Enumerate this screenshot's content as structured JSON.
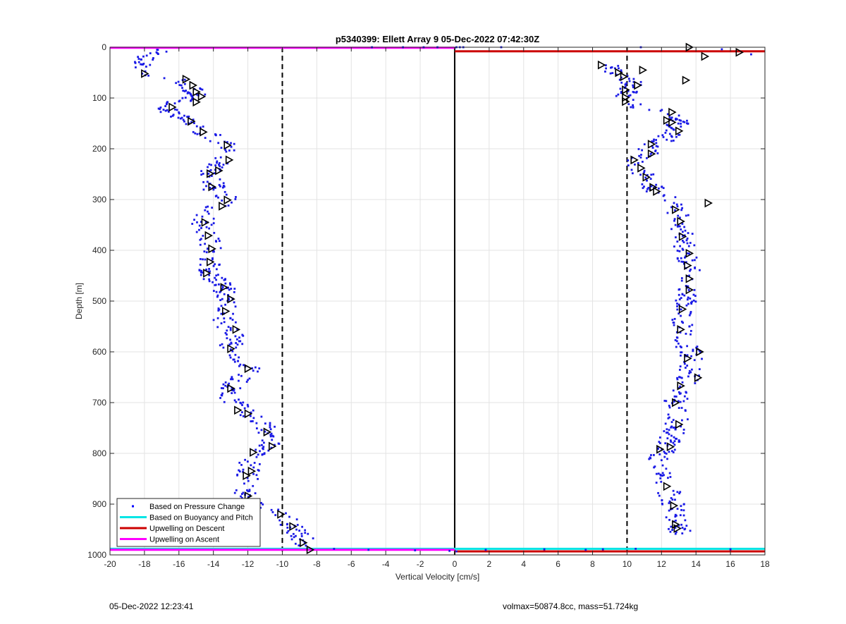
{
  "chart_data": {
    "type": "scatter",
    "title": "p5340399: Ellett Array 9 05-Dec-2022 07:42:30Z",
    "xlabel": "Vertical Velocity [cm/s]",
    "ylabel": "Depth [m]",
    "xlim": [
      -20,
      18
    ],
    "ylim": [
      1000,
      0
    ],
    "y_reversed": true,
    "grid": true,
    "legend_position": "bottom-left",
    "x_ticks": [
      -20,
      -18,
      -16,
      -14,
      -12,
      -10,
      -8,
      -6,
      -4,
      -2,
      0,
      2,
      4,
      6,
      8,
      10,
      12,
      14,
      16,
      18
    ],
    "y_ticks": [
      0,
      100,
      200,
      300,
      400,
      500,
      600,
      700,
      800,
      900,
      1000
    ],
    "reference_lines": [
      {
        "x": -10,
        "style": "dashed",
        "color": "#000000"
      },
      {
        "x": 0,
        "style": "solid",
        "color": "#000000"
      },
      {
        "x": 10,
        "style": "dashed",
        "color": "#000000"
      }
    ],
    "descent_profile": [
      [
        -17.2,
        5
      ],
      [
        -18.0,
        25
      ],
      [
        -18.5,
        45
      ],
      [
        -17.8,
        55
      ],
      [
        -16.3,
        62
      ],
      [
        -15.7,
        70
      ],
      [
        -15.3,
        80
      ],
      [
        -15.0,
        90
      ],
      [
        -15.4,
        100
      ],
      [
        -16.2,
        110
      ],
      [
        -16.8,
        120
      ],
      [
        -16.3,
        130
      ],
      [
        -15.6,
        140
      ],
      [
        -15.2,
        150
      ],
      [
        -14.8,
        160
      ],
      [
        -14.4,
        170
      ],
      [
        -13.8,
        180
      ],
      [
        -13.4,
        190
      ],
      [
        -13.3,
        200
      ],
      [
        -13.5,
        210
      ],
      [
        -13.4,
        220
      ],
      [
        -13.8,
        230
      ],
      [
        -14.3,
        245
      ],
      [
        -14.2,
        255
      ],
      [
        -14.0,
        265
      ],
      [
        -14.0,
        280
      ],
      [
        -13.4,
        290
      ],
      [
        -13.3,
        300
      ],
      [
        -13.6,
        310
      ],
      [
        -14.2,
        325
      ],
      [
        -14.6,
        340
      ],
      [
        -14.6,
        355
      ],
      [
        -14.3,
        370
      ],
      [
        -14.2,
        385
      ],
      [
        -14.0,
        400
      ],
      [
        -14.1,
        415
      ],
      [
        -14.2,
        430
      ],
      [
        -14.3,
        445
      ],
      [
        -13.8,
        460
      ],
      [
        -13.4,
        475
      ],
      [
        -13.2,
        490
      ],
      [
        -13.1,
        500
      ],
      [
        -13.3,
        515
      ],
      [
        -13.5,
        530
      ],
      [
        -13.3,
        545
      ],
      [
        -12.9,
        560
      ],
      [
        -12.8,
        575
      ],
      [
        -13.0,
        590
      ],
      [
        -12.6,
        605
      ],
      [
        -12.2,
        620
      ],
      [
        -11.9,
        635
      ],
      [
        -12.3,
        650
      ],
      [
        -12.8,
        665
      ],
      [
        -13.1,
        675
      ],
      [
        -13.0,
        690
      ],
      [
        -12.4,
        710
      ],
      [
        -11.9,
        725
      ],
      [
        -11.2,
        740
      ],
      [
        -10.8,
        755
      ],
      [
        -10.9,
        770
      ],
      [
        -10.7,
        785
      ],
      [
        -11.4,
        800
      ],
      [
        -11.9,
        815
      ],
      [
        -12.0,
        830
      ],
      [
        -12.0,
        845
      ],
      [
        -12.1,
        860
      ],
      [
        -12.2,
        875
      ],
      [
        -12.0,
        890
      ],
      [
        -11.5,
        900
      ],
      [
        -10.9,
        910
      ],
      [
        -10.1,
        920
      ],
      [
        -9.6,
        935
      ],
      [
        -9.2,
        950
      ],
      [
        -8.9,
        965
      ],
      [
        -8.6,
        978
      ],
      [
        -8.4,
        990
      ]
    ],
    "ascent_profile": [
      [
        9.0,
        35
      ],
      [
        9.4,
        50
      ],
      [
        9.7,
        60
      ],
      [
        10.6,
        75
      ],
      [
        10.1,
        85
      ],
      [
        9.9,
        100
      ],
      [
        10.2,
        110
      ],
      [
        11.0,
        120
      ],
      [
        12.2,
        130
      ],
      [
        12.9,
        140
      ],
      [
        13.0,
        150
      ],
      [
        12.7,
        165
      ],
      [
        12.3,
        180
      ],
      [
        11.4,
        195
      ],
      [
        11.2,
        210
      ],
      [
        10.6,
        222
      ],
      [
        10.7,
        235
      ],
      [
        11.0,
        250
      ],
      [
        11.3,
        265
      ],
      [
        11.6,
        280
      ],
      [
        12.3,
        295
      ],
      [
        13.0,
        308
      ],
      [
        12.8,
        320
      ],
      [
        13.1,
        335
      ],
      [
        13.2,
        350
      ],
      [
        13.2,
        365
      ],
      [
        13.2,
        380
      ],
      [
        13.4,
        395
      ],
      [
        13.5,
        410
      ],
      [
        13.5,
        425
      ],
      [
        13.6,
        440
      ],
      [
        13.6,
        455
      ],
      [
        13.6,
        470
      ],
      [
        13.5,
        485
      ],
      [
        13.4,
        500
      ],
      [
        13.3,
        515
      ],
      [
        13.3,
        530
      ],
      [
        13.2,
        545
      ],
      [
        13.3,
        560
      ],
      [
        13.4,
        575
      ],
      [
        13.5,
        590
      ],
      [
        13.7,
        600
      ],
      [
        13.7,
        615
      ],
      [
        13.6,
        630
      ],
      [
        13.6,
        645
      ],
      [
        13.4,
        660
      ],
      [
        13.1,
        675
      ],
      [
        12.9,
        690
      ],
      [
        12.7,
        705
      ],
      [
        12.8,
        720
      ],
      [
        12.9,
        735
      ],
      [
        12.8,
        750
      ],
      [
        12.6,
        765
      ],
      [
        12.4,
        780
      ],
      [
        12.1,
        795
      ],
      [
        11.9,
        810
      ],
      [
        11.8,
        825
      ],
      [
        12.0,
        840
      ],
      [
        12.3,
        855
      ],
      [
        12.4,
        870
      ],
      [
        12.5,
        885
      ],
      [
        12.7,
        900
      ],
      [
        12.8,
        915
      ],
      [
        12.9,
        930
      ],
      [
        13.0,
        945
      ],
      [
        13.2,
        960
      ]
    ],
    "descent_markers": [
      [
        -18.0,
        52
      ],
      [
        -15.6,
        63
      ],
      [
        -15.2,
        75
      ],
      [
        -15.0,
        88
      ],
      [
        -14.7,
        97
      ],
      [
        -15.0,
        108
      ],
      [
        -16.4,
        118
      ],
      [
        -15.3,
        146
      ],
      [
        -14.6,
        167
      ],
      [
        -13.2,
        193
      ],
      [
        -13.1,
        222
      ],
      [
        -14.2,
        249
      ],
      [
        -13.7,
        243
      ],
      [
        -14.1,
        275
      ],
      [
        -13.2,
        301
      ],
      [
        -13.5,
        313
      ],
      [
        -14.5,
        345
      ],
      [
        -14.3,
        371
      ],
      [
        -14.1,
        397
      ],
      [
        -14.2,
        423
      ],
      [
        -14.4,
        445
      ],
      [
        -13.4,
        473
      ],
      [
        -13.0,
        496
      ],
      [
        -13.3,
        520
      ],
      [
        -12.7,
        556
      ],
      [
        -13.0,
        594
      ],
      [
        -12.0,
        633
      ],
      [
        -13.0,
        672
      ],
      [
        -12.6,
        715
      ],
      [
        -12.0,
        722
      ],
      [
        -10.9,
        758
      ],
      [
        -10.6,
        786
      ],
      [
        -11.7,
        798
      ],
      [
        -11.8,
        835
      ],
      [
        -12.1,
        844
      ],
      [
        -12.0,
        884
      ],
      [
        -10.1,
        920
      ],
      [
        -9.4,
        944
      ],
      [
        -8.8,
        976
      ],
      [
        -8.4,
        990
      ]
    ],
    "ascent_markers": [
      [
        13.6,
        0
      ],
      [
        16.5,
        10
      ],
      [
        14.5,
        18
      ],
      [
        8.5,
        35
      ],
      [
        9.5,
        50
      ],
      [
        9.8,
        58
      ],
      [
        13.4,
        65
      ],
      [
        10.9,
        45
      ],
      [
        10.6,
        75
      ],
      [
        9.9,
        84
      ],
      [
        9.9,
        99
      ],
      [
        9.9,
        107
      ],
      [
        12.6,
        128
      ],
      [
        12.3,
        144
      ],
      [
        12.6,
        148
      ],
      [
        13.0,
        165
      ],
      [
        11.4,
        191
      ],
      [
        11.4,
        210
      ],
      [
        10.4,
        222
      ],
      [
        10.8,
        238
      ],
      [
        11.1,
        256
      ],
      [
        11.5,
        276
      ],
      [
        11.7,
        284
      ],
      [
        14.7,
        307
      ],
      [
        12.8,
        320
      ],
      [
        13.1,
        343
      ],
      [
        13.2,
        373
      ],
      [
        13.6,
        406
      ],
      [
        13.5,
        430
      ],
      [
        13.6,
        456
      ],
      [
        13.6,
        478
      ],
      [
        13.2,
        516
      ],
      [
        13.1,
        556
      ],
      [
        14.2,
        600
      ],
      [
        13.5,
        613
      ],
      [
        14.1,
        651
      ],
      [
        13.1,
        667
      ],
      [
        12.8,
        700
      ],
      [
        13.0,
        743
      ],
      [
        12.5,
        787
      ],
      [
        11.9,
        792
      ],
      [
        12.3,
        865
      ],
      [
        12.7,
        903
      ],
      [
        12.8,
        940
      ],
      [
        12.9,
        948
      ]
    ],
    "stray_points": [
      [
        -4.8,
        0
      ],
      [
        -3.0,
        0
      ],
      [
        -1.8,
        0
      ],
      [
        -1.0,
        0
      ],
      [
        0.1,
        0
      ],
      [
        0.3,
        0
      ],
      [
        0.5,
        0
      ],
      [
        2.7,
        0
      ],
      [
        10.8,
        0
      ],
      [
        15.5,
        4
      ],
      [
        17.2,
        14
      ],
      [
        -7.0,
        988
      ],
      [
        -5.0,
        990
      ],
      [
        -2.3,
        991
      ],
      [
        -0.3,
        992
      ],
      [
        0.1,
        993
      ],
      [
        1.8,
        990
      ],
      [
        5.2,
        989
      ],
      [
        7.6,
        990
      ],
      [
        8.6,
        989
      ],
      [
        10.5,
        988
      ],
      [
        16.0,
        989
      ]
    ],
    "horizontal_lines": [
      {
        "name": "Upwelling on Ascent",
        "y": 1,
        "x_range": [
          -20,
          0
        ],
        "color": "#ff00ff"
      },
      {
        "name": "Upwelling on Descent",
        "y": 8,
        "x_range": [
          0,
          18
        ],
        "color": "#cc0000"
      },
      {
        "name": "Based on Buoyancy and Pitch",
        "y": 988,
        "x_range": [
          -20,
          18
        ],
        "color": "#00e5e5"
      },
      {
        "name": "Upwelling on Descent",
        "y": 993,
        "x_range": [
          0,
          18
        ],
        "color": "#cc0000"
      },
      {
        "name": "Upwelling on Ascent",
        "y": 990,
        "x_range": [
          -20,
          0
        ],
        "color": "#ff00ff"
      }
    ],
    "legend": [
      {
        "name": "Based on Pressure Change",
        "kind": "dot",
        "color": "#0000ff"
      },
      {
        "name": "Based on Buoyancy and Pitch",
        "kind": "line",
        "color": "#00e5e5"
      },
      {
        "name": "Upwelling on Descent",
        "kind": "line",
        "color": "#cc0000"
      },
      {
        "name": "Upwelling on Ascent",
        "kind": "line",
        "color": "#ff00ff"
      }
    ]
  },
  "footer": {
    "timestamp": "05-Dec-2022 12:23:41",
    "params": "volmax=50874.8cc, mass=51.724kg"
  }
}
